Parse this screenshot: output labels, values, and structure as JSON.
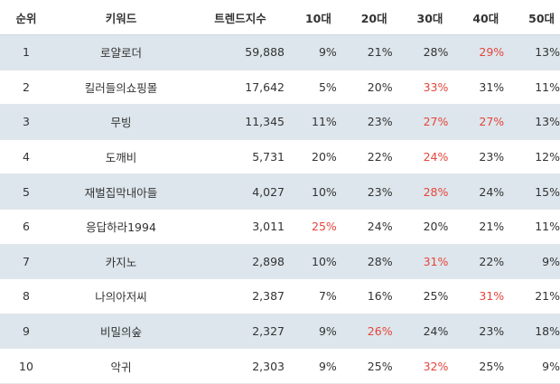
{
  "headers": [
    "순위",
    "키워드",
    "트렌드지수",
    "10대",
    "20대",
    "30대",
    "40대",
    "50대"
  ],
  "highlight_color": "#e5453b",
  "rows": [
    {
      "rank": "1",
      "keyword": "로얄로더",
      "index": "59,888",
      "pct": [
        "9%",
        "21%",
        "28%",
        "29%",
        "13%"
      ],
      "hl": [
        3
      ]
    },
    {
      "rank": "2",
      "keyword": "킬러들의쇼핑몰",
      "index": "17,642",
      "pct": [
        "5%",
        "20%",
        "33%",
        "31%",
        "11%"
      ],
      "hl": [
        2
      ]
    },
    {
      "rank": "3",
      "keyword": "무빙",
      "index": "11,345",
      "pct": [
        "11%",
        "23%",
        "27%",
        "27%",
        "13%"
      ],
      "hl": [
        2,
        3
      ]
    },
    {
      "rank": "4",
      "keyword": "도깨비",
      "index": "5,731",
      "pct": [
        "20%",
        "22%",
        "24%",
        "23%",
        "12%"
      ],
      "hl": [
        2
      ]
    },
    {
      "rank": "5",
      "keyword": "재벌집막내아들",
      "index": "4,027",
      "pct": [
        "10%",
        "23%",
        "28%",
        "24%",
        "15%"
      ],
      "hl": [
        2
      ]
    },
    {
      "rank": "6",
      "keyword": "응답하라1994",
      "index": "3,011",
      "pct": [
        "25%",
        "24%",
        "20%",
        "21%",
        "11%"
      ],
      "hl": [
        0
      ]
    },
    {
      "rank": "7",
      "keyword": "카지노",
      "index": "2,898",
      "pct": [
        "10%",
        "28%",
        "31%",
        "22%",
        "9%"
      ],
      "hl": [
        2
      ]
    },
    {
      "rank": "8",
      "keyword": "나의아저씨",
      "index": "2,387",
      "pct": [
        "7%",
        "16%",
        "25%",
        "31%",
        "21%"
      ],
      "hl": [
        3
      ]
    },
    {
      "rank": "9",
      "keyword": "비밀의숲",
      "index": "2,327",
      "pct": [
        "9%",
        "26%",
        "24%",
        "23%",
        "18%"
      ],
      "hl": [
        1
      ]
    },
    {
      "rank": "10",
      "keyword": "악귀",
      "index": "2,303",
      "pct": [
        "9%",
        "25%",
        "32%",
        "25%",
        "9%"
      ],
      "hl": [
        2
      ]
    }
  ]
}
